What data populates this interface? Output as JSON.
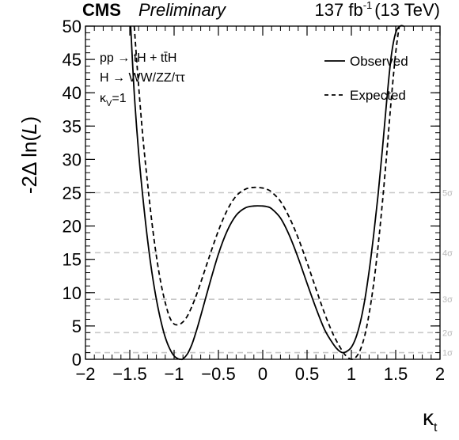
{
  "header": {
    "experiment": "CMS",
    "status": "Preliminary",
    "lumi_prefix": "137 fb",
    "lumi_exponent": "-1",
    "energy": "(13 TeV)"
  },
  "annotations": {
    "process_line": "pp → tH + tt̄H",
    "decay_line": "H → WW/ZZ/ττ",
    "kappa_v_symbol": "κ",
    "kappa_v_sub": "V",
    "kappa_v_value": "=1"
  },
  "chart_data": {
    "type": "line",
    "title": "",
    "ylabel_prefix": "-2Δ ln(",
    "ylabel_italic": "L",
    "ylabel_suffix": ")",
    "xlabel_symbol": "κ",
    "xlabel_sub": "t",
    "xlim": [
      -2,
      2
    ],
    "ylim": [
      0,
      50
    ],
    "x_ticks": [
      "−2",
      "−1.5",
      "−1",
      "−0.5",
      "0",
      "0.5",
      "1",
      "1.5",
      "2"
    ],
    "x_tick_values": [
      -2,
      -1.5,
      -1,
      -0.5,
      0,
      0.5,
      1,
      1.5,
      2
    ],
    "y_ticks": [
      "0",
      "5",
      "10",
      "15",
      "20",
      "25",
      "30",
      "35",
      "40",
      "45",
      "50"
    ],
    "y_tick_values": [
      0,
      5,
      10,
      15,
      20,
      25,
      30,
      35,
      40,
      45,
      50
    ],
    "sigma_lines": [
      {
        "label": "1σ",
        "value": 1
      },
      {
        "label": "2σ",
        "value": 4
      },
      {
        "label": "3σ",
        "value": 9
      },
      {
        "label": "4σ",
        "value": 16
      },
      {
        "label": "5σ",
        "value": 25
      }
    ],
    "legend_position": "top-right",
    "series": [
      {
        "name": "Observed",
        "style": "solid",
        "x": [
          -1.49,
          -1.45,
          -1.4,
          -1.35,
          -1.3,
          -1.25,
          -1.2,
          -1.15,
          -1.1,
          -1.05,
          -1.0,
          -0.95,
          -0.92,
          -0.9,
          -0.85,
          -0.8,
          -0.75,
          -0.7,
          -0.6,
          -0.5,
          -0.4,
          -0.3,
          -0.2,
          -0.1,
          0.0,
          0.05,
          0.1,
          0.2,
          0.3,
          0.4,
          0.5,
          0.6,
          0.7,
          0.8,
          0.85,
          0.9,
          0.95,
          1.0,
          1.05,
          1.1,
          1.15,
          1.2,
          1.25,
          1.3,
          1.35,
          1.4,
          1.45,
          1.5,
          1.55,
          1.59
        ],
        "y": [
          50,
          40,
          31,
          24,
          18,
          13,
          9,
          5.8,
          3.3,
          1.6,
          0.5,
          0.05,
          0,
          0.05,
          0.8,
          2.2,
          4.2,
          6.5,
          11.3,
          15.8,
          19.3,
          21.6,
          22.7,
          23.0,
          23.0,
          22.9,
          22.6,
          21.2,
          18.6,
          15.2,
          11.4,
          7.7,
          4.4,
          2.2,
          1.4,
          1.0,
          1.2,
          1.8,
          3.2,
          5.5,
          8.8,
          13.2,
          18.5,
          24.5,
          31.5,
          39,
          45.5,
          49,
          50,
          50
        ]
      },
      {
        "name": "Expected",
        "style": "dashed",
        "x": [
          -1.45,
          -1.4,
          -1.35,
          -1.3,
          -1.25,
          -1.2,
          -1.15,
          -1.1,
          -1.05,
          -1.0,
          -0.95,
          -0.9,
          -0.85,
          -0.8,
          -0.75,
          -0.7,
          -0.6,
          -0.5,
          -0.4,
          -0.3,
          -0.2,
          -0.1,
          0.0,
          0.05,
          0.1,
          0.2,
          0.3,
          0.4,
          0.5,
          0.6,
          0.7,
          0.8,
          0.9,
          0.95,
          1.0,
          1.05,
          1.1,
          1.15,
          1.2,
          1.25,
          1.3,
          1.35,
          1.4,
          1.45,
          1.5,
          1.54
        ],
        "y": [
          50,
          41,
          33,
          26.5,
          20.5,
          15.5,
          11.5,
          8.5,
          6.3,
          5.3,
          5.2,
          5.6,
          6.5,
          7.9,
          9.6,
          11.5,
          15.5,
          19.3,
          22.4,
          24.5,
          25.5,
          25.8,
          25.7,
          25.5,
          25.1,
          23.7,
          21.3,
          18.2,
          14.5,
          10.6,
          6.8,
          3.6,
          1.2,
          0.4,
          0,
          0.3,
          1.4,
          3.5,
          6.8,
          11.2,
          16.8,
          23.5,
          31,
          39,
          46,
          50
        ]
      }
    ]
  }
}
